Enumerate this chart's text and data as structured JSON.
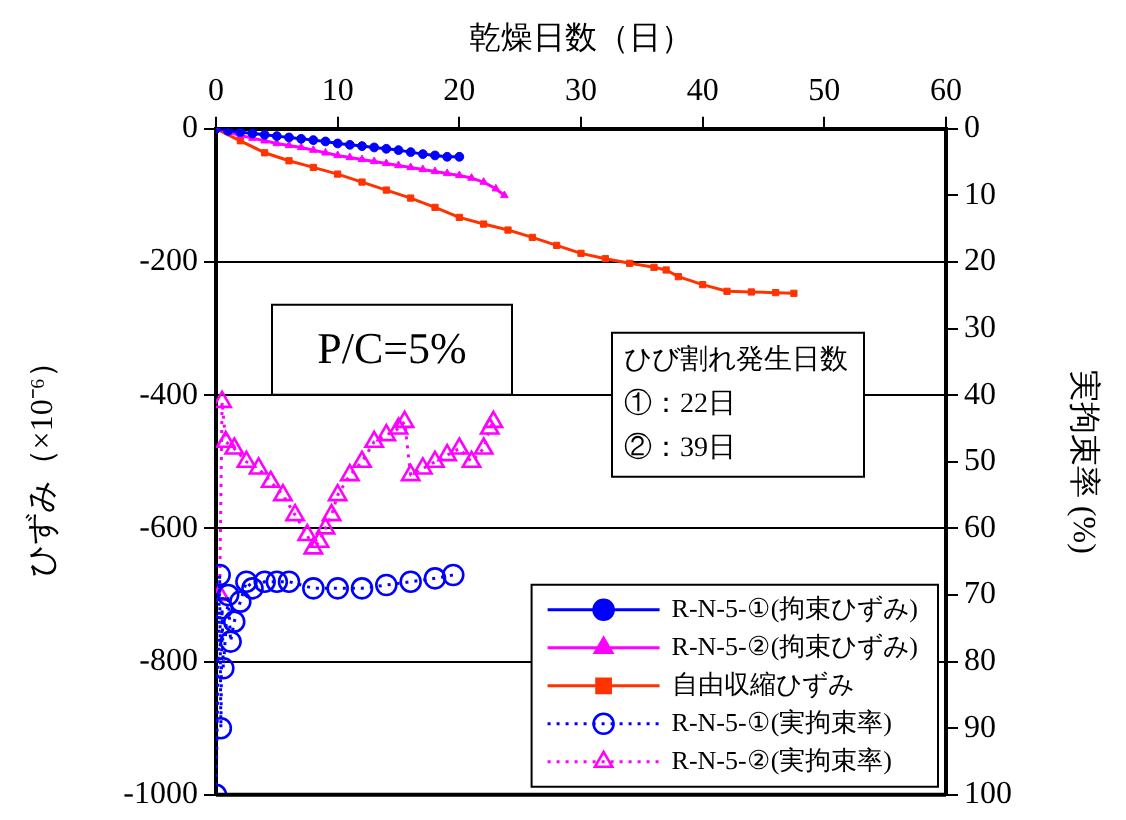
{
  "chart_data": {
    "type": "line",
    "xlabel": "乾燥日数（日）",
    "ylabel": "ひずみ（×10⁻⁶）",
    "y2label": "実拘束率 (%)",
    "xlim": [
      0,
      60
    ],
    "xticks": [
      0,
      10,
      20,
      30,
      40,
      50,
      60
    ],
    "ylim": [
      -1000,
      0
    ],
    "yticks": [
      -1000,
      -800,
      -600,
      -400,
      -200,
      0
    ],
    "y2lim": [
      100,
      0
    ],
    "y2ticks": [
      0,
      10,
      20,
      30,
      40,
      50,
      60,
      70,
      80,
      90,
      100
    ],
    "grid": "y",
    "legend": "bottom right",
    "annotations": [
      "P/C=5%",
      "ひび割れ発生日数\n①：22日\n②：39日"
    ],
    "series": [
      {
        "name": "R-N-5-①(拘束ひずみ)",
        "color": "#0000ff",
        "marker": "circle",
        "line_style": "solid",
        "x": [
          0,
          1,
          2,
          3,
          4,
          5,
          6,
          7,
          8,
          9,
          10,
          11,
          12,
          13,
          14,
          15,
          16,
          17,
          18,
          19,
          20
        ],
        "values": [
          0,
          -3,
          -5,
          -7,
          -9,
          -11,
          -13,
          -15,
          -17,
          -19,
          -22,
          -24,
          -26,
          -28,
          -30,
          -32,
          -35,
          -38,
          -40,
          -42,
          -42
        ]
      },
      {
        "name": "R-N-5-②(拘束ひずみ)",
        "color": "#ff00ff",
        "marker": "triangle",
        "line_style": "solid",
        "x": [
          0,
          1,
          2,
          3,
          4,
          5,
          6,
          7,
          8,
          9,
          10,
          11,
          12,
          13,
          14,
          15,
          16,
          17,
          18,
          19,
          20,
          21,
          22,
          23,
          23.7
        ],
        "values": [
          0,
          -5,
          -10,
          -14,
          -18,
          -22,
          -25,
          -28,
          -32,
          -36,
          -40,
          -43,
          -46,
          -49,
          -52,
          -55,
          -58,
          -61,
          -64,
          -67,
          -70,
          -74,
          -80,
          -90,
          -100
        ]
      },
      {
        "name": "自由収縮ひずみ",
        "color": "#ff3300",
        "marker": "square",
        "line_style": "solid",
        "x": [
          0,
          2,
          4,
          6,
          8,
          10,
          12,
          14,
          16,
          18,
          20,
          22,
          24,
          26,
          28,
          30,
          32,
          34,
          36,
          37,
          38,
          40,
          42,
          44,
          46,
          47.5
        ],
        "values": [
          0,
          -18,
          -36,
          -48,
          -58,
          -68,
          -80,
          -92,
          -104,
          -118,
          -133,
          -143,
          -152,
          -163,
          -175,
          -187,
          -195,
          -202,
          -208,
          -212,
          -222,
          -234,
          -244,
          -245,
          -246,
          -247
        ]
      },
      {
        "name": "R-N-5-①(実拘束率)",
        "color": "#0000ff",
        "marker": "circle",
        "line_style": "dotted",
        "axis": "y2",
        "x": [
          0,
          0.3,
          0.4,
          0.5,
          0.6,
          1,
          1.2,
          1.5,
          2,
          2.5,
          3,
          4,
          5,
          6,
          8,
          10,
          12,
          14,
          16,
          18,
          19.5
        ],
        "values": [
          100,
          67,
          90,
          72,
          81,
          70,
          77,
          74,
          71,
          68,
          69,
          68,
          68,
          68,
          69,
          69,
          69,
          68.5,
          68,
          67.5,
          67
        ]
      },
      {
        "name": "R-N-5-②(実拘束率)",
        "color": "#ff00ff",
        "marker": "triangle",
        "line_style": "dotted",
        "axis": "y2",
        "x": [
          0.3,
          0.5,
          0.8,
          1.5,
          2.5,
          3.5,
          4.5,
          5.5,
          6.5,
          7.5,
          8,
          8.5,
          9,
          9.5,
          10,
          11,
          12,
          13,
          14,
          15,
          15.5,
          16,
          17,
          18,
          19,
          20,
          21,
          22,
          22.5,
          22.8
        ],
        "values": [
          70,
          41,
          47,
          48,
          50,
          51,
          53,
          55,
          58,
          61,
          63,
          62,
          60,
          58,
          55,
          52,
          50,
          47,
          46,
          45,
          44,
          52,
          51,
          50,
          49,
          48,
          50,
          48,
          45,
          44
        ]
      }
    ]
  }
}
